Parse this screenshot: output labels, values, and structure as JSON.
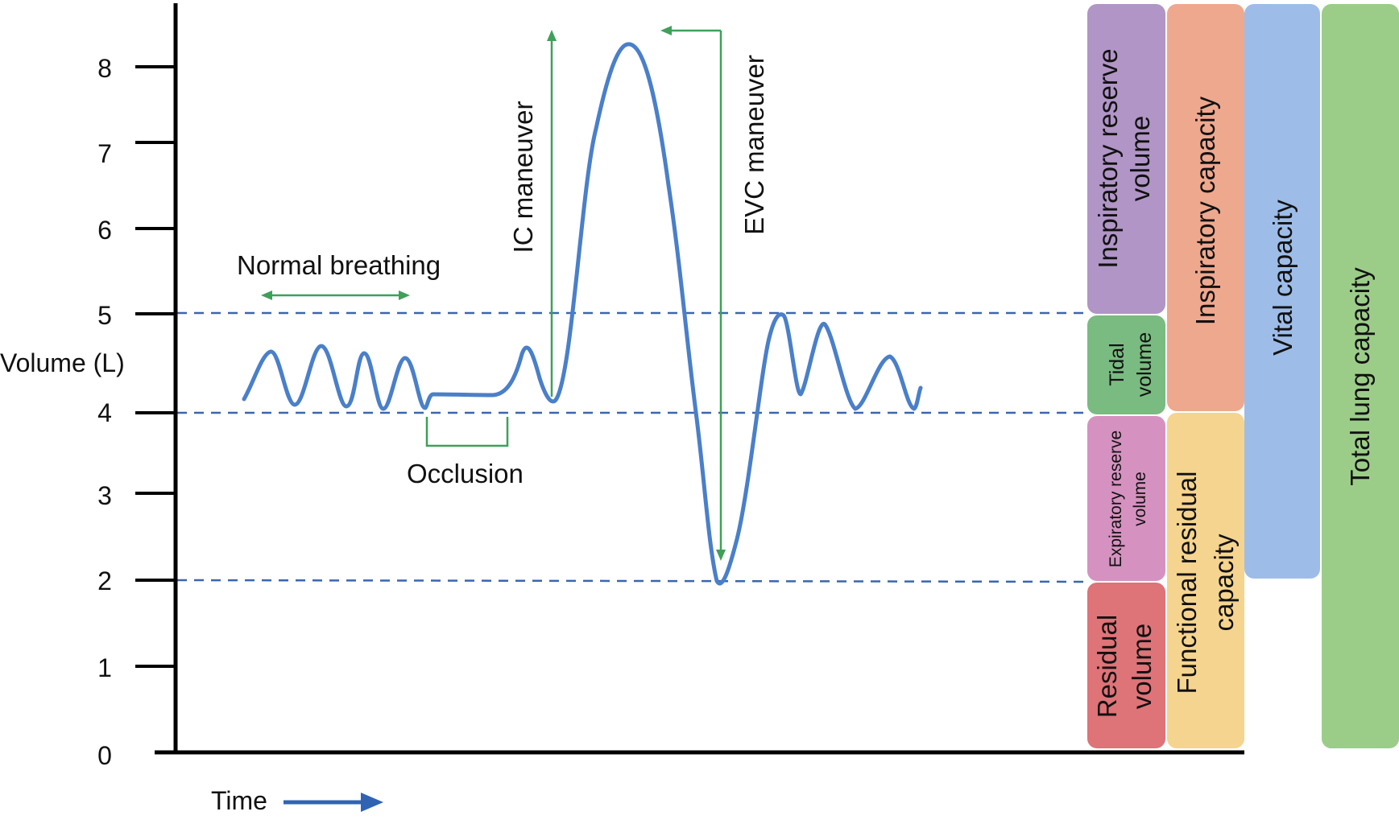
{
  "colors": {
    "trace": "#4a7fc9",
    "dashed": "#3a66b0",
    "arrow_green": "#3fa05a",
    "axis": "#000000",
    "irv": "#b095c6",
    "tidal": "#79bb80",
    "erv": "#d592c0",
    "rv": "#de7378",
    "ic": "#eea88e",
    "frc": "#f5d48f",
    "vc": "#9dbde8",
    "tlc": "#9ccd88",
    "time_arrow": "#2f64b3"
  },
  "axis": {
    "ylabel": "Volume (L)",
    "xlabel": "Time",
    "ticks": [
      "0",
      "1",
      "2",
      "3",
      "4",
      "5",
      "6",
      "7",
      "8"
    ],
    "tick_values": [
      0,
      1,
      2,
      3,
      4,
      5,
      6,
      7,
      8
    ]
  },
  "annotations": {
    "normal_breathing": "Normal breathing",
    "occlusion": "Occlusion",
    "ic_maneuver": "IC maneuver",
    "evc_maneuver": "EVC maneuver"
  },
  "reference_levels": [
    5,
    4,
    2
  ],
  "volumes": {
    "irv": {
      "line1": "Inspiratory reserve",
      "line2": "volume"
    },
    "tidal": {
      "line1": "Tidal",
      "line2": "volume"
    },
    "erv": {
      "line1": "Expiratory reserve",
      "line2": "volume"
    },
    "rv": {
      "line1": "Residual",
      "line2": "volume"
    }
  },
  "capacities": {
    "ic": "Inspiratory capacity",
    "frc": {
      "line1": "Functional residual",
      "line2": "capacity"
    },
    "vc": "Vital capacity",
    "tlc": "Total lung capacity"
  }
}
